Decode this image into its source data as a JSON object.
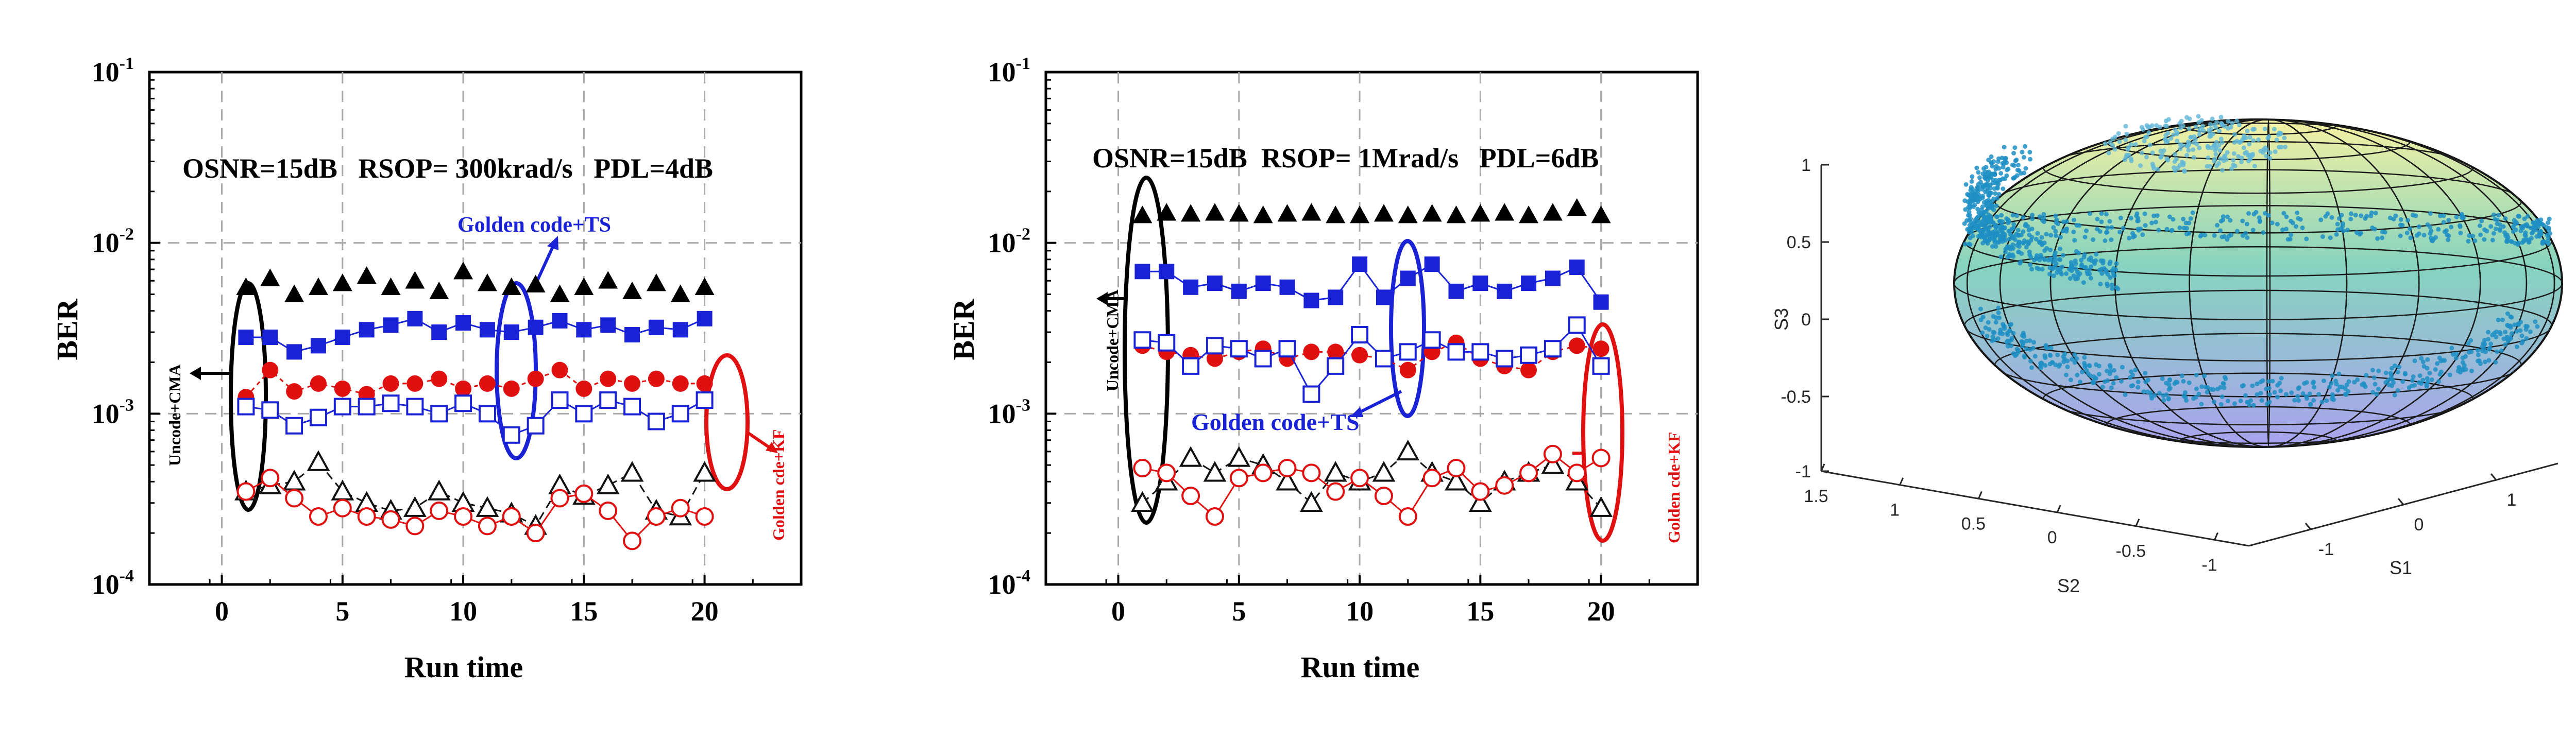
{
  "chart_data": [
    {
      "type": "scatter",
      "panel": "left",
      "xlabel": "Run time",
      "ylabel": "BER",
      "y_scale": "log",
      "xlim": [
        -3,
        24
      ],
      "ylim": [
        0.0001,
        0.1
      ],
      "x_ticks": [
        "0",
        "5",
        "10",
        "15",
        "20"
      ],
      "y_ticks": [
        {
          "base": "10",
          "exp": "-1"
        },
        {
          "base": "10",
          "exp": "-2"
        },
        {
          "base": "10",
          "exp": "-3"
        },
        {
          "base": "10",
          "exp": "-4"
        }
      ],
      "grid": "dashed",
      "annotations": {
        "conditions": "OSNR=15dB   RSOP= 300krad/s   PDL=4dB",
        "golden_ts": "Golden code+TS",
        "uncode": "Uncode+CMA",
        "golden_kf": "Golden cde+KF"
      },
      "x": [
        1,
        2,
        3,
        4,
        5,
        6,
        7,
        8,
        9,
        10,
        11,
        12,
        13,
        14,
        15,
        16,
        17,
        18,
        19,
        20
      ],
      "series": [
        {
          "marker": "triangle-filled",
          "color": "#000000",
          "values": [
            0.0055,
            0.0062,
            0.005,
            0.0055,
            0.0058,
            0.0064,
            0.0055,
            0.006,
            0.0052,
            0.0068,
            0.0058,
            0.0055,
            0.0057,
            0.005,
            0.0055,
            0.006,
            0.0052,
            0.0058,
            0.005,
            0.0055
          ]
        },
        {
          "marker": "square-filled",
          "color": "#1a22d6",
          "values": [
            0.0028,
            0.0028,
            0.0023,
            0.0025,
            0.0028,
            0.0031,
            0.0033,
            0.0036,
            0.003,
            0.0034,
            0.0031,
            0.003,
            0.0032,
            0.0035,
            0.0031,
            0.0033,
            0.0029,
            0.0032,
            0.0031,
            0.0036
          ]
        },
        {
          "marker": "circle-filled",
          "color": "#e01010",
          "values": [
            0.00125,
            0.0018,
            0.00135,
            0.0015,
            0.0014,
            0.0013,
            0.0015,
            0.0015,
            0.0016,
            0.0014,
            0.0015,
            0.0014,
            0.0016,
            0.0018,
            0.0014,
            0.0016,
            0.0015,
            0.0016,
            0.0015,
            0.0015
          ]
        },
        {
          "marker": "square-open",
          "color": "#1a22d6",
          "values": [
            0.0011,
            0.00105,
            0.00085,
            0.00095,
            0.0011,
            0.0011,
            0.00115,
            0.0011,
            0.001,
            0.00115,
            0.001,
            0.00075,
            0.00085,
            0.0012,
            0.001,
            0.0012,
            0.0011,
            0.0009,
            0.001,
            0.0012
          ]
        },
        {
          "marker": "triangle-open",
          "color": "#111111",
          "values": [
            0.00035,
            0.00038,
            0.0004,
            0.00052,
            0.00035,
            0.0003,
            0.00027,
            0.00028,
            0.00035,
            0.0003,
            0.00028,
            0.00026,
            0.00022,
            0.00038,
            0.00033,
            0.00038,
            0.00045,
            0.00027,
            0.00025,
            0.00045
          ]
        },
        {
          "marker": "circle-open",
          "color": "#e01010",
          "values": [
            0.00035,
            0.00042,
            0.00032,
            0.00025,
            0.00028,
            0.00025,
            0.00024,
            0.00022,
            0.00027,
            0.00025,
            0.00022,
            0.00025,
            0.0002,
            0.00032,
            0.00034,
            0.00027,
            0.00018,
            0.00025,
            0.00028,
            0.00025
          ]
        }
      ]
    },
    {
      "type": "scatter",
      "panel": "middle",
      "xlabel": "Run time",
      "ylabel": "BER",
      "y_scale": "log",
      "xlim": [
        -3,
        24
      ],
      "ylim": [
        0.0001,
        0.1
      ],
      "x_ticks": [
        "0",
        "5",
        "10",
        "15",
        "20"
      ],
      "y_ticks": [
        {
          "base": "10",
          "exp": "-1"
        },
        {
          "base": "10",
          "exp": "-2"
        },
        {
          "base": "10",
          "exp": "-3"
        },
        {
          "base": "10",
          "exp": "-4"
        }
      ],
      "grid": "dashed",
      "annotations": {
        "conditions": "OSNR=15dB  RSOP= 1Mrad/s   PDL=6dB",
        "golden_ts": "Golden code+TS",
        "uncode": "Uncode+CMA",
        "golden_kf": "Golden cde+KF"
      },
      "x": [
        1,
        2,
        3,
        4,
        5,
        6,
        7,
        8,
        9,
        10,
        11,
        12,
        13,
        14,
        15,
        16,
        17,
        18,
        19,
        20
      ],
      "series": [
        {
          "marker": "triangle-filled",
          "color": "#000000",
          "values": [
            0.0145,
            0.015,
            0.0148,
            0.015,
            0.0148,
            0.0145,
            0.0148,
            0.015,
            0.0145,
            0.0145,
            0.0148,
            0.0145,
            0.0148,
            0.0145,
            0.0148,
            0.015,
            0.0145,
            0.015,
            0.016,
            0.0145
          ]
        },
        {
          "marker": "square-filled",
          "color": "#1a22d6",
          "values": [
            0.0068,
            0.0068,
            0.0055,
            0.0058,
            0.0052,
            0.0058,
            0.0055,
            0.0046,
            0.0048,
            0.0075,
            0.0048,
            0.0062,
            0.0075,
            0.0052,
            0.0058,
            0.0052,
            0.0058,
            0.0062,
            0.0072,
            0.0045
          ]
        },
        {
          "marker": "circle-filled",
          "color": "#e01010",
          "values": [
            0.0025,
            0.0023,
            0.0022,
            0.0021,
            0.0023,
            0.0024,
            0.0021,
            0.0023,
            0.0023,
            0.0022,
            0.0021,
            0.0018,
            0.0023,
            0.0026,
            0.0021,
            0.0019,
            0.0018,
            0.0023,
            0.0025,
            0.0024
          ]
        },
        {
          "marker": "square-open",
          "color": "#1a22d6",
          "values": [
            0.0027,
            0.0026,
            0.0019,
            0.0025,
            0.0024,
            0.0021,
            0.0024,
            0.0013,
            0.0019,
            0.0029,
            0.0021,
            0.0023,
            0.0027,
            0.0023,
            0.0023,
            0.0021,
            0.0022,
            0.0024,
            0.0033,
            0.0019
          ]
        },
        {
          "marker": "triangle-open",
          "color": "#111111",
          "values": [
            0.0003,
            0.0004,
            0.00055,
            0.00045,
            0.00055,
            0.0005,
            0.0004,
            0.0003,
            0.00045,
            0.0004,
            0.00045,
            0.0006,
            0.00045,
            0.0004,
            0.0003,
            0.0004,
            0.00045,
            0.0005,
            0.0004,
            0.00028
          ]
        },
        {
          "marker": "circle-open",
          "color": "#e01010",
          "values": [
            0.00048,
            0.00045,
            0.00033,
            0.00025,
            0.00042,
            0.00045,
            0.00048,
            0.00045,
            0.00035,
            0.00042,
            0.00033,
            0.00025,
            0.00042,
            0.00048,
            0.00035,
            0.00038,
            0.00045,
            0.00058,
            0.00045,
            0.00055
          ]
        }
      ]
    },
    {
      "type": "scatter",
      "panel": "right",
      "dimension": "3d",
      "xlabel": "S1",
      "ylabel": "S2",
      "zlabel": "S3",
      "s1_ticks": [
        "-1",
        "0",
        "1"
      ],
      "s2_ticks": [
        "1.5",
        "1",
        "0.5",
        "0",
        "-0.5",
        "-1"
      ],
      "s3_ticks": [
        "1",
        "0.5",
        "0",
        "-0.5",
        "-1"
      ],
      "description_colors": {
        "sphere_top": "#f2ee9a",
        "sphere_mid": "#7fd0c0",
        "sphere_bottom": "#a9a3ee",
        "points": "#1f8fc4"
      }
    }
  ]
}
